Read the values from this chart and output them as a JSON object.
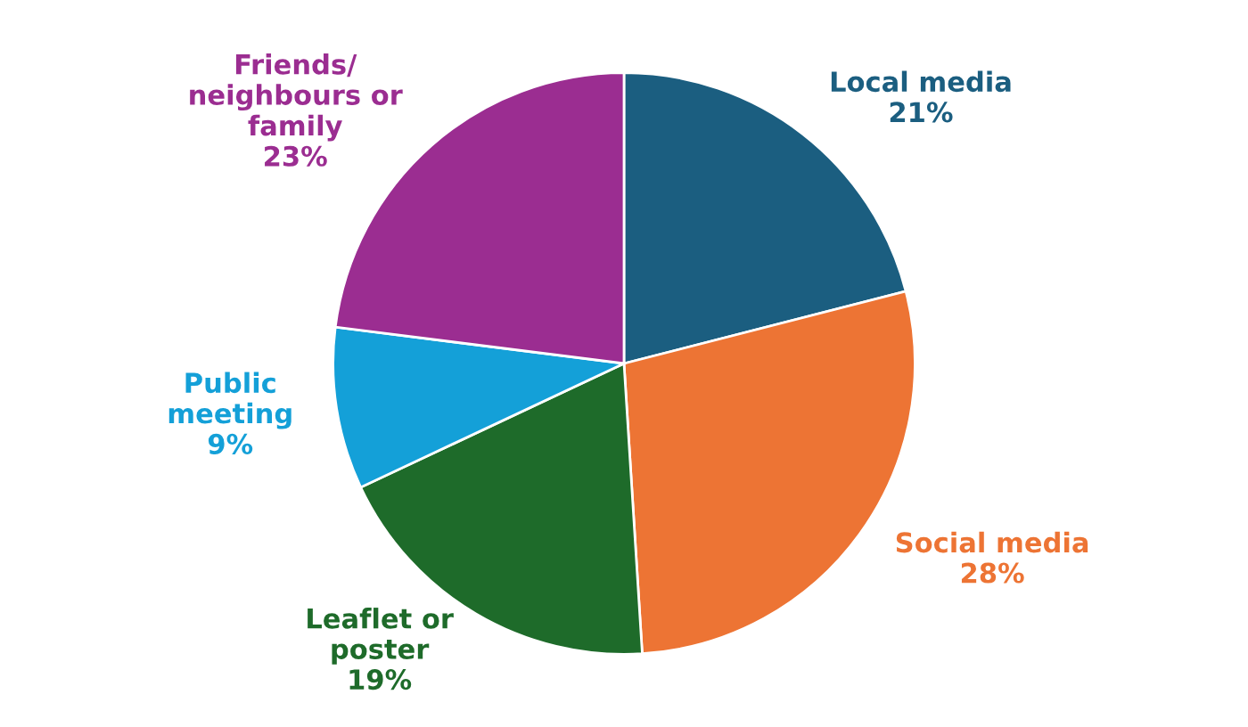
{
  "chart_data": {
    "type": "pie",
    "categories": [
      "Local media",
      "Social media",
      "Leaflet or\nposter",
      "Public\nmeeting",
      "Friends/\nneighbours or\nfamily"
    ],
    "values": [
      21,
      28,
      19,
      9,
      23
    ],
    "colors": [
      "#1b5e80",
      "#ed7434",
      "#1e6b2a",
      "#14a0d8",
      "#9b2d91"
    ],
    "value_labels": [
      "21%",
      "28%",
      "19%",
      "9%",
      "23%"
    ]
  }
}
